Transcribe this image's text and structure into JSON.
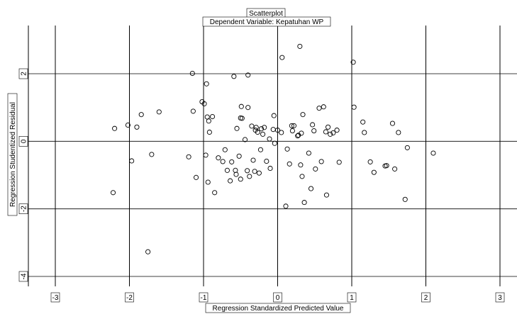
{
  "chart_data": {
    "type": "scatter",
    "title": "Scatterplot",
    "subtitle": "Dependent Variable: Kepatuhan WP",
    "xlabel": "Regression Standardized Predicted Value",
    "ylabel": "Regression Studentized Residual",
    "xlim": [
      -3,
      3
    ],
    "ylim": [
      -4,
      2
    ],
    "x_ticks": [
      -3,
      -2,
      -1,
      0,
      1,
      2,
      3
    ],
    "y_ticks": [
      -4,
      -2,
      0,
      2
    ],
    "x_tick_labels": [
      "-3",
      "-2",
      "-1",
      "0",
      "1",
      "2",
      "3"
    ],
    "y_tick_labels": [
      "-4",
      "-2",
      "0",
      "2"
    ],
    "grid": true,
    "points": [
      [
        -2.22,
        -1.52
      ],
      [
        -2.2,
        0.38
      ],
      [
        -2.02,
        0.48
      ],
      [
        -1.97,
        -0.58
      ],
      [
        -1.9,
        0.42
      ],
      [
        -1.84,
        0.79
      ],
      [
        -1.75,
        -3.27
      ],
      [
        -1.7,
        -0.39
      ],
      [
        -1.6,
        0.87
      ],
      [
        -1.2,
        -0.46
      ],
      [
        -1.15,
        2.01
      ],
      [
        -1.14,
        0.89
      ],
      [
        -1.1,
        -1.07
      ],
      [
        -1.02,
        1.17
      ],
      [
        -0.99,
        1.11
      ],
      [
        -0.97,
        -0.41
      ],
      [
        -0.96,
        1.7
      ],
      [
        -0.95,
        0.72
      ],
      [
        -0.94,
        -1.21
      ],
      [
        -0.93,
        0.6
      ],
      [
        -0.92,
        0.27
      ],
      [
        -0.88,
        0.73
      ],
      [
        -0.85,
        -1.52
      ],
      [
        -0.8,
        -0.49
      ],
      [
        -0.74,
        -0.6
      ],
      [
        -0.71,
        -0.25
      ],
      [
        -0.68,
        -0.86
      ],
      [
        -0.64,
        -1.17
      ],
      [
        -0.62,
        -0.61
      ],
      [
        -0.59,
        1.92
      ],
      [
        -0.57,
        -0.86
      ],
      [
        -0.56,
        -0.98
      ],
      [
        -0.55,
        0.38
      ],
      [
        -0.52,
        -0.44
      ],
      [
        -0.5,
        0.69
      ],
      [
        -0.5,
        -1.12
      ],
      [
        -0.49,
        1.03
      ],
      [
        -0.48,
        0.68
      ],
      [
        -0.44,
        0.05
      ],
      [
        -0.41,
        -0.87
      ],
      [
        -0.4,
        1.96
      ],
      [
        -0.4,
        1.0
      ],
      [
        -0.38,
        -1.04
      ],
      [
        -0.35,
        0.45
      ],
      [
        -0.33,
        -0.56
      ],
      [
        -0.31,
        -0.89
      ],
      [
        -0.3,
        0.33
      ],
      [
        -0.29,
        0.41
      ],
      [
        -0.27,
        0.27
      ],
      [
        -0.25,
        -0.94
      ],
      [
        -0.23,
        -0.25
      ],
      [
        -0.22,
        0.37
      ],
      [
        -0.2,
        0.21
      ],
      [
        -0.18,
        0.41
      ],
      [
        -0.15,
        -0.59
      ],
      [
        -0.11,
        0.07
      ],
      [
        -0.1,
        -0.8
      ],
      [
        -0.06,
        0.35
      ],
      [
        -0.05,
        0.76
      ],
      [
        -0.04,
        -0.06
      ],
      [
        0.0,
        0.33
      ],
      [
        0.05,
        0.26
      ],
      [
        0.06,
        2.48
      ],
      [
        0.11,
        -1.92
      ],
      [
        0.13,
        -0.23
      ],
      [
        0.16,
        -0.67
      ],
      [
        0.19,
        0.46
      ],
      [
        0.2,
        0.31
      ],
      [
        0.22,
        0.46
      ],
      [
        0.27,
        0.16
      ],
      [
        0.28,
        0.18
      ],
      [
        0.3,
        2.81
      ],
      [
        0.31,
        -0.7
      ],
      [
        0.32,
        0.24
      ],
      [
        0.33,
        -1.04
      ],
      [
        0.34,
        0.79
      ],
      [
        0.36,
        -1.81
      ],
      [
        0.42,
        -0.35
      ],
      [
        0.45,
        -1.4
      ],
      [
        0.47,
        0.49
      ],
      [
        0.49,
        0.31
      ],
      [
        0.51,
        -0.82
      ],
      [
        0.56,
        0.98
      ],
      [
        0.59,
        -0.6
      ],
      [
        0.62,
        1.02
      ],
      [
        0.65,
        0.28
      ],
      [
        0.66,
        -1.59
      ],
      [
        0.68,
        0.42
      ],
      [
        0.71,
        0.21
      ],
      [
        0.75,
        0.25
      ],
      [
        0.8,
        0.33
      ],
      [
        0.83,
        -0.62
      ],
      [
        1.02,
        2.34
      ],
      [
        1.03,
        1.01
      ],
      [
        1.15,
        0.57
      ],
      [
        1.17,
        0.26
      ],
      [
        1.25,
        -0.61
      ],
      [
        1.3,
        -0.92
      ],
      [
        1.45,
        -0.73
      ],
      [
        1.47,
        -0.72
      ],
      [
        1.55,
        0.53
      ],
      [
        1.58,
        -0.82
      ],
      [
        1.63,
        0.26
      ],
      [
        1.72,
        -1.72
      ],
      [
        1.75,
        -0.19
      ],
      [
        2.1,
        -0.35
      ]
    ]
  }
}
